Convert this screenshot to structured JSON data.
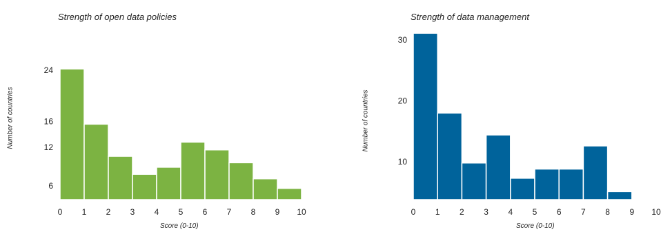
{
  "chart_data": [
    {
      "type": "bar",
      "title": "Strength of open data policies",
      "xlabel": "Score (0-10)",
      "ylabel": "Number of countries",
      "color": "#7cb342",
      "bin_edges": [
        0,
        1,
        2,
        3,
        4,
        5,
        6,
        7,
        8,
        9,
        10
      ],
      "values": [
        24.2,
        15.6,
        10.6,
        7.8,
        8.9,
        12.8,
        11.6,
        9.6,
        7.1,
        5.6
      ],
      "x_ticks": [
        "0",
        "1",
        "2",
        "3",
        "4",
        "5",
        "6",
        "7",
        "8",
        "9",
        "10"
      ],
      "y_ticks": [
        {
          "value": 6,
          "label": "6"
        },
        {
          "value": 12,
          "label": "12"
        },
        {
          "value": 16,
          "label": "16"
        },
        {
          "value": 24,
          "label": "24"
        }
      ],
      "grid": false
    },
    {
      "type": "bar",
      "title": "Strength of data management",
      "xlabel": "Score (0-10)",
      "ylabel": "Number of countries",
      "color": "#00639b",
      "bin_edges": [
        0,
        1,
        2,
        3,
        4,
        5,
        6,
        7,
        8,
        9
      ],
      "values": [
        31.1,
        18.0,
        9.8,
        14.4,
        7.3,
        8.8,
        8.8,
        12.6,
        5.1
      ],
      "x_ticks": [
        "0",
        "1",
        "2",
        "3",
        "4",
        "5",
        "6",
        "7",
        "8",
        "9",
        "10"
      ],
      "y_ticks": [
        {
          "value": 10,
          "label": "10"
        },
        {
          "value": 20,
          "label": "20"
        },
        {
          "value": 30,
          "label": "30"
        }
      ],
      "grid": false
    }
  ]
}
